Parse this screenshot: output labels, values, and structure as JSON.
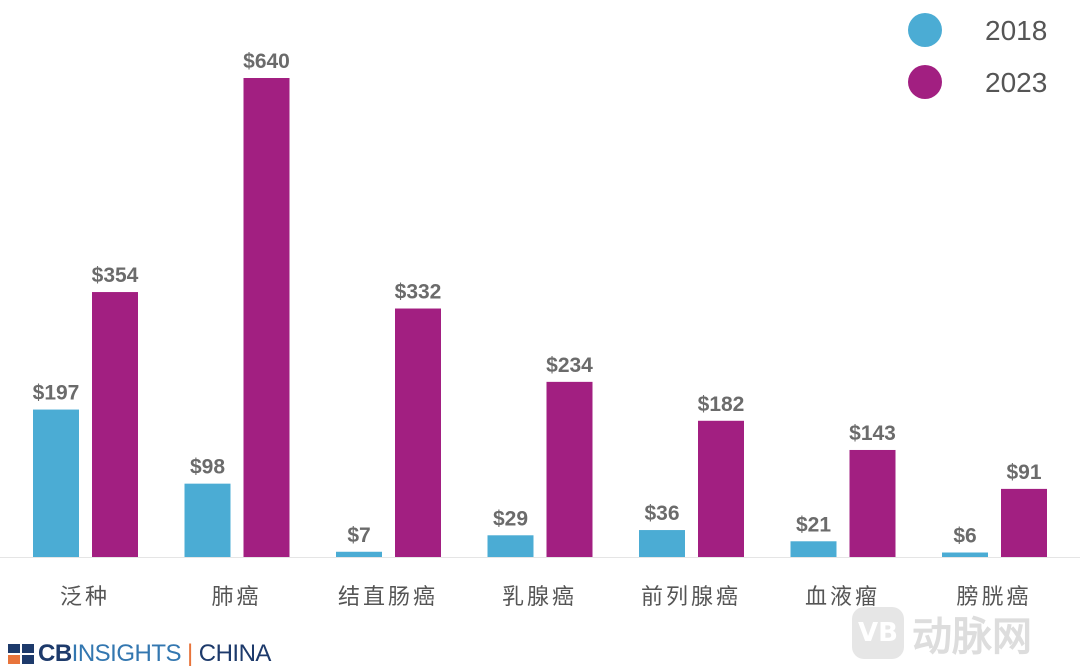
{
  "chart_data": {
    "type": "bar",
    "categories": [
      "泛种",
      "肺癌",
      "结直肠癌",
      "乳腺癌",
      "前列腺癌",
      "血液瘤",
      "膀胱癌"
    ],
    "series": [
      {
        "name": "2018",
        "color": "#4BACD4",
        "values": [
          197,
          98,
          7,
          29,
          36,
          21,
          6
        ],
        "labels": [
          "$197",
          "$98",
          "$7",
          "$29",
          "$36",
          "$21",
          "$6"
        ]
      },
      {
        "name": "2023",
        "color": "#A21F81",
        "values": [
          354,
          640,
          332,
          234,
          182,
          143,
          91
        ],
        "labels": [
          "$354",
          "$640",
          "$332",
          "$234",
          "$182",
          "$143",
          "$91"
        ]
      }
    ],
    "ylim": [
      0,
      640
    ],
    "grid": false,
    "legend": "top-right"
  },
  "branding": {
    "logo_text": "CBINSIGHTS | CHINA",
    "logo_cb": "CB",
    "logo_insights": "INSIGHTS",
    "logo_sep": "|",
    "logo_china": "CHINA",
    "watermark": "动脉网",
    "watermark_mark": "VB"
  }
}
